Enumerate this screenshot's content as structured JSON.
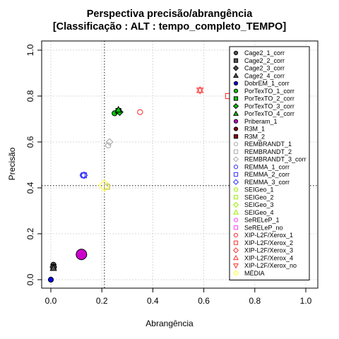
{
  "chart_data": {
    "type": "scatter",
    "title": "Perspectiva precisão/abrangência",
    "subtitle": "[Classificação : ALT : tempo_completo_TEMPO]",
    "xlabel": "Abrangência",
    "ylabel": "Precisão",
    "xlim": [
      0,
      1
    ],
    "ylim": [
      0,
      1
    ],
    "xticks": [
      "0.0",
      "0.2",
      "0.4",
      "0.6",
      "0.8",
      "1.0"
    ],
    "yticks": [
      "0.0",
      "0.2",
      "0.4",
      "0.6",
      "0.8",
      "1.0"
    ],
    "grid": true,
    "reference_lines": {
      "x": 0.21,
      "y": 0.41
    },
    "legend_position": "right",
    "series": [
      {
        "name": "Cage2_1_corr",
        "color": "#555555",
        "shape": "circle",
        "x": 0.01,
        "y": 0.065
      },
      {
        "name": "Cage2_2_corr",
        "color": "#555555",
        "shape": "square",
        "x": 0.01,
        "y": 0.055
      },
      {
        "name": "Cage2_3_corr",
        "color": "#555555",
        "shape": "diamond",
        "x": 0.01,
        "y": 0.055
      },
      {
        "name": "Cage2_4_corr",
        "color": "#555555",
        "shape": "triangle",
        "x": 0.01,
        "y": 0.05
      },
      {
        "name": "DobrEM_1_corr",
        "color": "#0000ee",
        "shape": "circle",
        "x": 0.0,
        "y": 0.0
      },
      {
        "name": "PorTexTO_1_corr",
        "color": "#00cc00",
        "shape": "circle",
        "x": 0.25,
        "y": 0.725
      },
      {
        "name": "PorTexTO_2_corr",
        "color": "#00cc00",
        "shape": "square",
        "x": 0.265,
        "y": 0.735
      },
      {
        "name": "PorTexTO_3_corr",
        "color": "#00cc00",
        "shape": "diamond",
        "x": 0.27,
        "y": 0.73
      },
      {
        "name": "PorTexTO_4_corr",
        "color": "#00cc00",
        "shape": "triangle",
        "x": 0.265,
        "y": 0.74
      },
      {
        "name": "Priberam_1",
        "color": "#cc00cc",
        "shape": "circle",
        "x": 0.12,
        "y": 0.11
      },
      {
        "name": "R3M_1",
        "color": "#8b0000",
        "shape": "circle",
        "x": null,
        "y": null
      },
      {
        "name": "R3M_2",
        "color": "#8b0000",
        "shape": "square",
        "x": null,
        "y": null
      },
      {
        "name": "REMBRANDT_1",
        "color": "#aaaaaa",
        "shape": "circle-open",
        "x": 0.225,
        "y": 0.585
      },
      {
        "name": "REMBRANDT_2",
        "color": "#aaaaaa",
        "shape": "square-open",
        "x": null,
        "y": null
      },
      {
        "name": "REMBRANDT_3_corr",
        "color": "#aaaaaa",
        "shape": "diamond-open",
        "x": 0.23,
        "y": 0.6
      },
      {
        "name": "REMMA_1_corr",
        "color": "#3333ff",
        "shape": "circle-open",
        "x": 0.125,
        "y": 0.455
      },
      {
        "name": "REMMA_2_corr",
        "color": "#3333ff",
        "shape": "square-open",
        "x": 0.13,
        "y": 0.455
      },
      {
        "name": "REMMA_3_corr",
        "color": "#3333ff",
        "shape": "diamond-open",
        "x": 0.13,
        "y": 0.455
      },
      {
        "name": "SEIGeo_1",
        "color": "#99ee00",
        "shape": "circle-open",
        "x": null,
        "y": null
      },
      {
        "name": "SEIGeo_2",
        "color": "#99ee00",
        "shape": "square-open",
        "x": null,
        "y": null
      },
      {
        "name": "SEIGeo_3",
        "color": "#99ee00",
        "shape": "diamond-open",
        "x": null,
        "y": null
      },
      {
        "name": "SEIGeo_4",
        "color": "#99ee00",
        "shape": "triangle-open",
        "x": null,
        "y": null
      },
      {
        "name": "SeRELeP_1",
        "color": "#ff44ff",
        "shape": "circle-open",
        "x": null,
        "y": null
      },
      {
        "name": "SeRELeP_no",
        "color": "#ff44ff",
        "shape": "square-open",
        "x": null,
        "y": null
      },
      {
        "name": "XIP-L2F/Xerox_1",
        "color": "#ff3333",
        "shape": "circle-open",
        "x": 0.35,
        "y": 0.73
      },
      {
        "name": "XIP-L2F/Xerox_2",
        "color": "#ff3333",
        "shape": "square-open",
        "x": 0.695,
        "y": 0.8
      },
      {
        "name": "XIP-L2F/Xerox_3",
        "color": "#ff3333",
        "shape": "diamond-open",
        "x": null,
        "y": null
      },
      {
        "name": "XIP-L2F/Xerox_4",
        "color": "#ff3333",
        "shape": "triangle-open",
        "x": 0.585,
        "y": 0.825
      },
      {
        "name": "XIP-L2F/Xerox_no",
        "color": "#ff3333",
        "shape": "triangle-down-open",
        "x": 0.585,
        "y": 0.825
      },
      {
        "name": "MÉDIA",
        "color": "#ffff33",
        "shape": "diamond-open",
        "x": 0.21,
        "y": 0.41
      }
    ],
    "extra_markers": [
      {
        "series": "REMBRANDT_2",
        "color": "#bbbb33",
        "shape": "square-open",
        "x": 0.22,
        "y": 0.405
      }
    ]
  }
}
